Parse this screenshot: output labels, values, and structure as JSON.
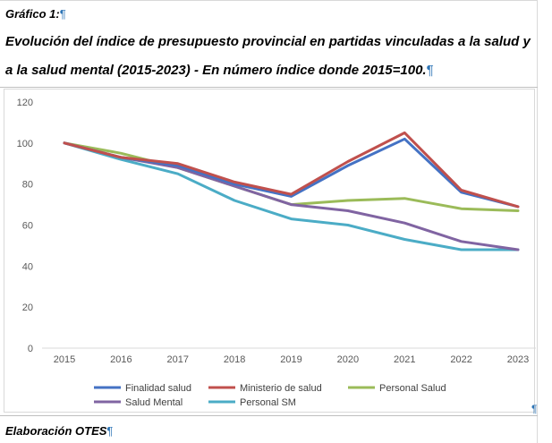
{
  "doc": {
    "label": "Gráfico 1:",
    "title_line1": "Evolución del índice de presupuesto provincial en partidas vinculadas a la salud y",
    "title_line2": "a la salud mental (2015-2023) - En número índice donde 2015=100.",
    "footer": "Elaboración OTES",
    "pilcrow": "¶"
  },
  "chart_data": {
    "type": "line",
    "x": [
      "2015",
      "2016",
      "2017",
      "2018",
      "2019",
      "2020",
      "2021",
      "2022",
      "2023"
    ],
    "ylim": [
      0,
      120
    ],
    "yticks": [
      0,
      20,
      40,
      60,
      80,
      100,
      120
    ],
    "grid": false,
    "legend_position": "bottom",
    "series": [
      {
        "name": "Finalidad salud",
        "color": "#4472c4",
        "values": [
          100,
          93,
          89,
          80,
          74,
          89,
          102,
          76,
          69
        ]
      },
      {
        "name": "Ministerio de salud",
        "color": "#c0504d",
        "values": [
          100,
          93,
          90,
          81,
          75,
          91,
          105,
          77,
          69
        ]
      },
      {
        "name": "Personal Salud",
        "color": "#9bbb59",
        "values": [
          100,
          95,
          88,
          79,
          70,
          72,
          73,
          68,
          67
        ]
      },
      {
        "name": "Salud Mental",
        "color": "#8064a2",
        "values": [
          100,
          93,
          88,
          79,
          70,
          67,
          61,
          52,
          48
        ]
      },
      {
        "name": "Personal SM",
        "color": "#4bacc6",
        "values": [
          100,
          92,
          85,
          72,
          63,
          60,
          53,
          48,
          48
        ]
      }
    ]
  }
}
